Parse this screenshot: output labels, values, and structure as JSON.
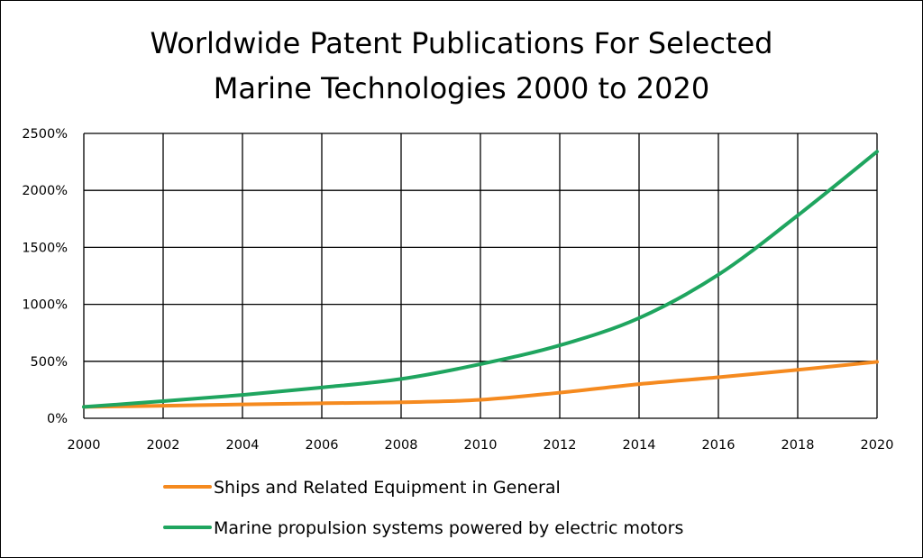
{
  "chart_data": {
    "type": "line",
    "title": [
      "Worldwide Patent Publications For Selected",
      "Marine Technologies 2000 to 2020"
    ],
    "xlabel": "",
    "ylabel": "",
    "x": [
      2000,
      2002,
      2004,
      2006,
      2008,
      2010,
      2012,
      2014,
      2016,
      2018,
      2020
    ],
    "x_tick_labels": [
      "2000",
      "2002",
      "2004",
      "2006",
      "2008",
      "2010",
      "2012",
      "2014",
      "2016",
      "2018",
      "2020"
    ],
    "xlim": [
      2000,
      2020
    ],
    "ylim": [
      0,
      2500
    ],
    "y_ticks": [
      0,
      500,
      1000,
      1500,
      2000,
      2500
    ],
    "y_tick_labels": [
      "0%",
      "500%",
      "1000%",
      "1500%",
      "2000%",
      "2500%"
    ],
    "grid": true,
    "legend_position": "bottom",
    "series": [
      {
        "name": "Ships and Related Equipment in General",
        "color": "#f58a1f",
        "values": [
          100,
          110,
          122,
          132,
          140,
          162,
          225,
          300,
          360,
          425,
          495
        ]
      },
      {
        "name": "Marine propulsion systems powered by electric motors",
        "color": "#1fa55f",
        "values": [
          100,
          150,
          205,
          270,
          345,
          475,
          640,
          880,
          1260,
          1780,
          2340
        ]
      }
    ]
  }
}
